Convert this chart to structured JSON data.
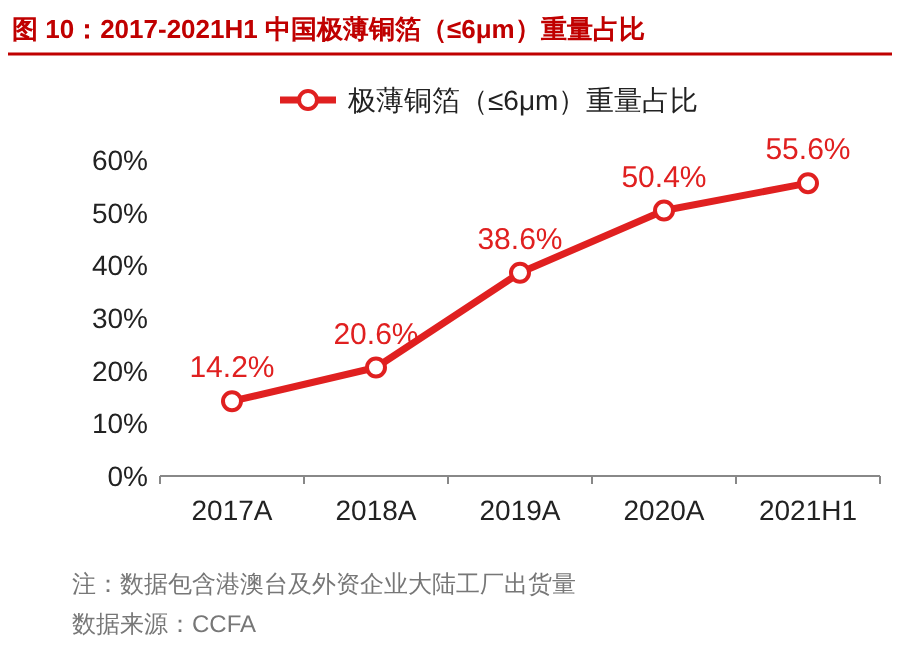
{
  "chart_data": {
    "type": "line",
    "title": "图 10：2017-2021H1 中国极薄铜箔（≤6μm）重量占比",
    "categories": [
      "2017A",
      "2018A",
      "2019A",
      "2020A",
      "2021H1"
    ],
    "series": [
      {
        "name": "极薄铜箔（≤6μm）重量占比",
        "color": "#e02020",
        "values": [
          14.2,
          20.6,
          38.6,
          50.4,
          55.6
        ],
        "value_labels": [
          "14.2%",
          "20.6%",
          "38.6%",
          "50.4%",
          "55.6%"
        ]
      }
    ],
    "ylim": [
      0,
      60
    ],
    "yticks": [
      {
        "value": 0,
        "label": "0%"
      },
      {
        "value": 10,
        "label": "10%"
      },
      {
        "value": 20,
        "label": "20%"
      },
      {
        "value": 30,
        "label": "30%"
      },
      {
        "value": 40,
        "label": "40%"
      },
      {
        "value": 50,
        "label": "50%"
      },
      {
        "value": 60,
        "label": "60%"
      }
    ],
    "marker": "circle",
    "line_style": "solid",
    "legend": "top",
    "annotations": [
      "注：数据包含港澳台及外资企业大陆工厂出货量",
      "数据来源：CCFA"
    ]
  }
}
